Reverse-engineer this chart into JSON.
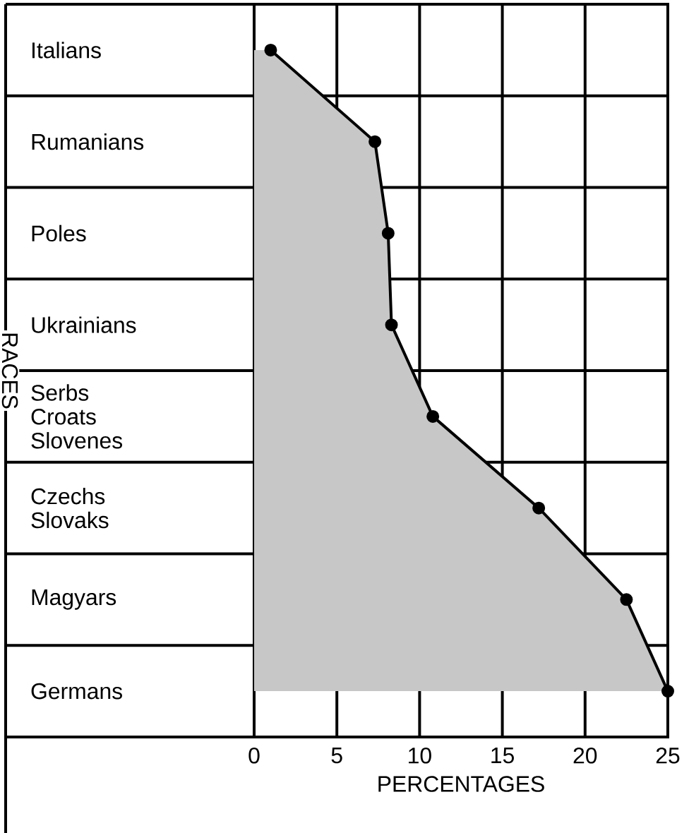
{
  "chart_data": {
    "type": "area",
    "orientation": "horizontal",
    "ylabel": "RACES",
    "xlabel": "PERCENTAGES",
    "categories": [
      "Italians",
      "Rumanians",
      "Poles",
      "Ukrainians",
      "Serbs Croats Slovenes",
      "Czechs Slovaks",
      "Magyars",
      "Germans"
    ],
    "series": [
      {
        "color": "#000000",
        "values": [
          1.0,
          7.3,
          8.1,
          8.3,
          10.8,
          17.2,
          22.5,
          25.0
        ]
      }
    ],
    "xlim": [
      0,
      25
    ],
    "xticks": [
      0,
      5,
      10,
      15,
      20,
      25
    ],
    "grid": true,
    "marker": "circle",
    "line_style": "solid"
  }
}
